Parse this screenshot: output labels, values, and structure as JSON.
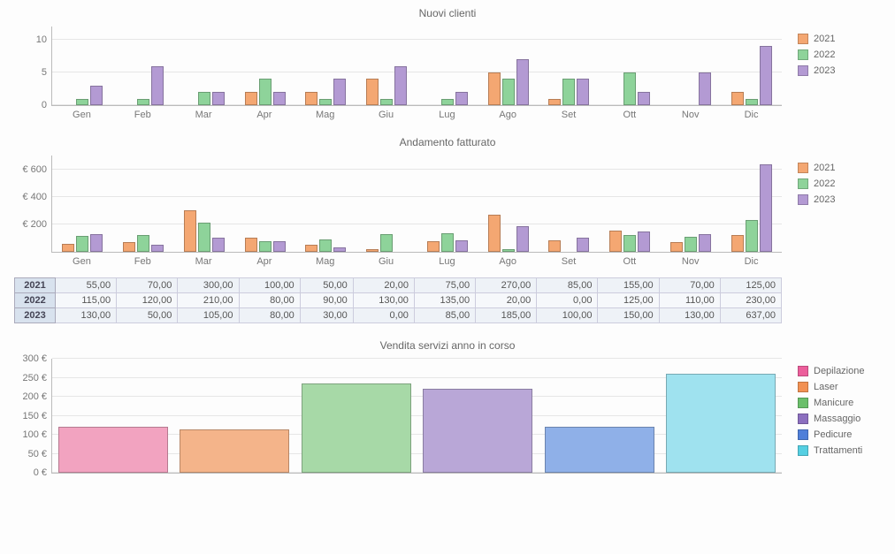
{
  "months": [
    "Gen",
    "Feb",
    "Mar",
    "Apr",
    "Mag",
    "Giu",
    "Lug",
    "Ago",
    "Set",
    "Ott",
    "Nov",
    "Dic"
  ],
  "year_colors": {
    "2021": "#f4a772",
    "2022": "#8ed39a",
    "2023": "#b39ad3"
  },
  "chart1": {
    "title": "Nuovi clienti",
    "type": "bar",
    "height": 90,
    "ylim": [
      0,
      12
    ],
    "yticks": [
      0,
      5,
      10
    ],
    "ytick_labels": [
      "0",
      "5",
      "10"
    ],
    "grid_color": "#e6e6e6",
    "legend": [
      "2021",
      "2022",
      "2023"
    ],
    "series": {
      "2021": [
        0,
        0,
        0,
        2,
        2,
        4,
        0,
        5,
        1,
        0,
        0,
        2
      ],
      "2022": [
        1,
        1,
        2,
        4,
        1,
        1,
        1,
        4,
        4,
        5,
        0,
        1
      ],
      "2023": [
        3,
        6,
        2,
        2,
        4,
        6,
        2,
        7,
        4,
        2,
        5,
        9
      ]
    }
  },
  "chart2": {
    "title": "Andamento fatturato",
    "type": "bar",
    "height": 110,
    "ylim": [
      0,
      700
    ],
    "yticks": [
      200,
      400,
      600
    ],
    "ytick_labels": [
      "€ 200",
      "€ 400",
      "€ 600"
    ],
    "grid_color": "#e6e6e6",
    "legend": [
      "2021",
      "2022",
      "2023"
    ],
    "series": {
      "2021": [
        55,
        70,
        300,
        100,
        50,
        20,
        75,
        270,
        85,
        155,
        70,
        125
      ],
      "2022": [
        115,
        120,
        210,
        80,
        90,
        130,
        135,
        20,
        0,
        125,
        110,
        230
      ],
      "2023": [
        130,
        50,
        105,
        80,
        30,
        0,
        85,
        185,
        100,
        150,
        130,
        637
      ]
    },
    "table_rows": [
      {
        "label": "2021",
        "values": [
          "55,00",
          "70,00",
          "300,00",
          "100,00",
          "50,00",
          "20,00",
          "75,00",
          "270,00",
          "85,00",
          "155,00",
          "70,00",
          "125,00"
        ]
      },
      {
        "label": "2022",
        "values": [
          "115,00",
          "120,00",
          "210,00",
          "80,00",
          "90,00",
          "130,00",
          "135,00",
          "20,00",
          "0,00",
          "125,00",
          "110,00",
          "230,00"
        ]
      },
      {
        "label": "2023",
        "values": [
          "130,00",
          "50,00",
          "105,00",
          "80,00",
          "30,00",
          "0,00",
          "85,00",
          "185,00",
          "100,00",
          "150,00",
          "130,00",
          "637,00"
        ]
      }
    ]
  },
  "chart3": {
    "title": "Vendita servizi anno in corso",
    "type": "bar",
    "height": 130,
    "ylim": [
      0,
      300
    ],
    "yticks": [
      0,
      50,
      100,
      150,
      200,
      250,
      300
    ],
    "ytick_labels": [
      "0 €",
      "50 €",
      "100 €",
      "150 €",
      "200 €",
      "250 €",
      "300 €"
    ],
    "grid_color": "#e6e6e6",
    "categories": [
      "Depilazione",
      "Laser",
      "Manicure",
      "Massaggio",
      "Pedicure",
      "Trattamenti"
    ],
    "values": [
      120,
      115,
      235,
      220,
      120,
      260
    ],
    "colors": [
      "#f2a3c0",
      "#f4b48a",
      "#a7d9a7",
      "#b9a7d7",
      "#8fb0e8",
      "#9fe2ef"
    ],
    "legend": [
      {
        "label": "Depilazione",
        "color": "#ec5e9b"
      },
      {
        "label": "Laser",
        "color": "#f29153"
      },
      {
        "label": "Manicure",
        "color": "#6bbf6b"
      },
      {
        "label": "Massaggio",
        "color": "#8c6fbf"
      },
      {
        "label": "Pedicure",
        "color": "#4f7fd9"
      },
      {
        "label": "Trattamenti",
        "color": "#55cfe2"
      }
    ]
  }
}
